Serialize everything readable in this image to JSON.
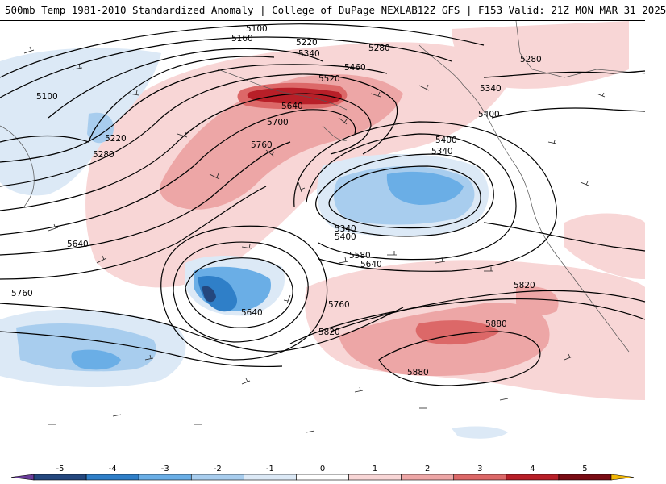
{
  "header": {
    "left_title": "500mb Temp 1981-2010 Standardized Anomaly | College of DuPage NEXLAB",
    "right_title": "12Z GFS | F153 Valid: 21Z MON MAR 31 2025"
  },
  "legend": {
    "ticks": [
      "-5",
      "-4",
      "-3",
      "-2",
      "-1",
      "0",
      "1",
      "2",
      "3",
      "4",
      "5"
    ],
    "colors": [
      "#6a3d9a",
      "#24477e",
      "#2f7fc8",
      "#6aaee6",
      "#a8cdee",
      "#dce9f6",
      "#ffffff",
      "#f8d6d6",
      "#eda6a6",
      "#dc6868",
      "#b81f28",
      "#7a0c14",
      "#f2b705"
    ]
  },
  "contour_labels": [
    {
      "text": "5100",
      "role": "top"
    },
    {
      "text": "5160",
      "role": "top"
    },
    {
      "text": "5220",
      "role": "top"
    },
    {
      "text": "5340",
      "role": "top"
    },
    {
      "text": "5280",
      "role": "top"
    },
    {
      "text": "5460",
      "role": "top"
    },
    {
      "text": "5520",
      "role": "top"
    },
    {
      "text": "5640",
      "role": "top"
    },
    {
      "text": "5100",
      "role": "left"
    },
    {
      "text": "5220",
      "role": "left"
    },
    {
      "text": "5280",
      "role": "left"
    },
    {
      "text": "5700",
      "role": "ridge"
    },
    {
      "text": "5760",
      "role": "ridge"
    },
    {
      "text": "5400",
      "role": "low"
    },
    {
      "text": "5340",
      "role": "low"
    },
    {
      "text": "5340",
      "role": "low"
    },
    {
      "text": "5400",
      "role": "low"
    },
    {
      "text": "5580",
      "role": "low"
    },
    {
      "text": "5640",
      "role": "low"
    },
    {
      "text": "5640",
      "role": "left"
    },
    {
      "text": "5760",
      "role": "left"
    },
    {
      "text": "5640",
      "role": "cutoff"
    },
    {
      "text": "5760",
      "role": "cutoff"
    },
    {
      "text": "5820",
      "role": "cutoff"
    },
    {
      "text": "5880",
      "role": "south"
    },
    {
      "text": "5880",
      "role": "south"
    },
    {
      "text": "5820",
      "role": "east"
    },
    {
      "text": "5400",
      "role": "east"
    },
    {
      "text": "5340",
      "role": "east"
    },
    {
      "text": "5280",
      "role": "east"
    }
  ]
}
